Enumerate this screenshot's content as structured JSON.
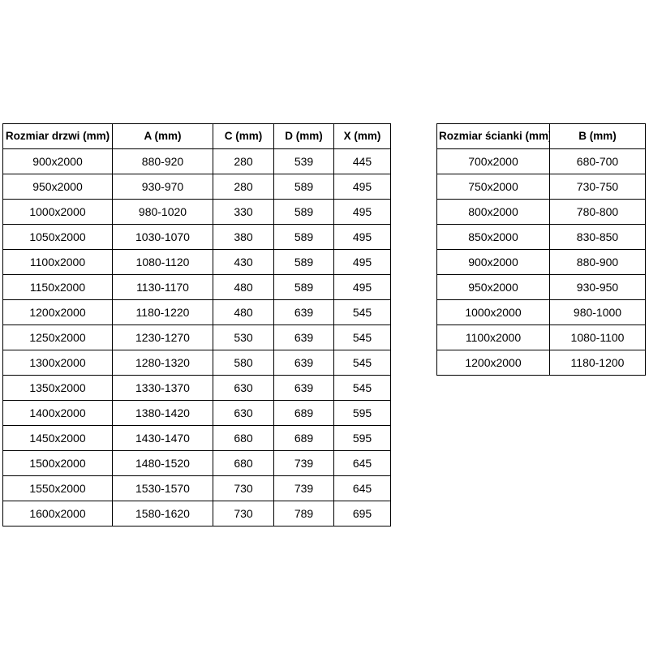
{
  "colors": {
    "background": "#ffffff",
    "text": "#000000",
    "border": "#000000"
  },
  "tables": {
    "doors": {
      "headers": [
        "Rozmiar drzwi (mm)",
        "A (mm)",
        "C (mm)",
        "D (mm)",
        "X (mm)"
      ],
      "rows": [
        [
          "900x2000",
          "880-920",
          "280",
          "539",
          "445"
        ],
        [
          "950x2000",
          "930-970",
          "280",
          "589",
          "495"
        ],
        [
          "1000x2000",
          "980-1020",
          "330",
          "589",
          "495"
        ],
        [
          "1050x2000",
          "1030-1070",
          "380",
          "589",
          "495"
        ],
        [
          "1100x2000",
          "1080-1120",
          "430",
          "589",
          "495"
        ],
        [
          "1150x2000",
          "1130-1170",
          "480",
          "589",
          "495"
        ],
        [
          "1200x2000",
          "1180-1220",
          "480",
          "639",
          "545"
        ],
        [
          "1250x2000",
          "1230-1270",
          "530",
          "639",
          "545"
        ],
        [
          "1300x2000",
          "1280-1320",
          "580",
          "639",
          "545"
        ],
        [
          "1350x2000",
          "1330-1370",
          "630",
          "639",
          "545"
        ],
        [
          "1400x2000",
          "1380-1420",
          "630",
          "689",
          "595"
        ],
        [
          "1450x2000",
          "1430-1470",
          "680",
          "689",
          "595"
        ],
        [
          "1500x2000",
          "1480-1520",
          "680",
          "739",
          "645"
        ],
        [
          "1550x2000",
          "1530-1570",
          "730",
          "739",
          "645"
        ],
        [
          "1600x2000",
          "1580-1620",
          "730",
          "789",
          "695"
        ]
      ]
    },
    "walls": {
      "headers": [
        "Rozmiar ścianki (mm)",
        "B (mm)"
      ],
      "rows": [
        [
          "700x2000",
          "680-700"
        ],
        [
          "750x2000",
          "730-750"
        ],
        [
          "800x2000",
          "780-800"
        ],
        [
          "850x2000",
          "830-850"
        ],
        [
          "900x2000",
          "880-900"
        ],
        [
          "950x2000",
          "930-950"
        ],
        [
          "1000x2000",
          "980-1000"
        ],
        [
          "1100x2000",
          "1080-1100"
        ],
        [
          "1200x2000",
          "1180-1200"
        ]
      ]
    }
  }
}
